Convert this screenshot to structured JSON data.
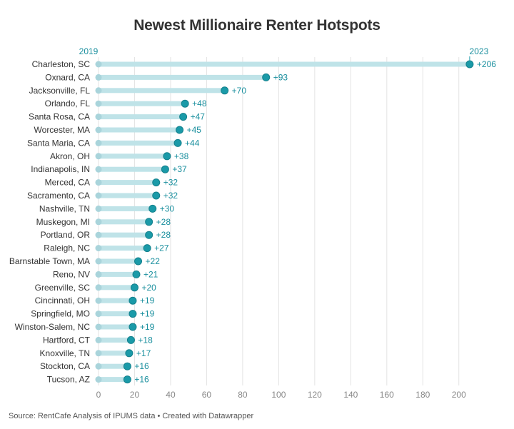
{
  "colors": {
    "accent": "#1a9aa8",
    "start_dot": "#a9d4db",
    "bar_light": "#bfe3e8",
    "grid": "#e3e3e3",
    "label": "#1a8f9e"
  },
  "chart_data": {
    "type": "range-dot",
    "title": "Newest Millionaire Renter Hotspots",
    "source": "Source: RentCafe Analysis of IPUMS data • Created with Datawrapper",
    "start_label": "2019",
    "end_label": "2023",
    "xlim": [
      0,
      210
    ],
    "xticks": [
      0,
      20,
      40,
      60,
      80,
      100,
      120,
      140,
      160,
      180,
      200
    ],
    "grid": true,
    "categories": [
      "Charleston, SC",
      "Oxnard, CA",
      "Jacksonville, FL",
      "Orlando, FL",
      "Santa Rosa, CA",
      "Worcester, MA",
      "Santa Maria, CA",
      "Akron, OH",
      "Indianapolis, IN",
      "Merced, CA",
      "Sacramento, CA",
      "Nashville, TN",
      "Muskegon, MI",
      "Portland, OR",
      "Raleigh, NC",
      "Barnstable Town, MA",
      "Reno, NV",
      "Greenville, SC",
      "Cincinnati, OH",
      "Springfield, MO",
      "Winston-Salem, NC",
      "Hartford, CT",
      "Knoxville, TN",
      "Stockton, CA",
      "Tucson, AZ"
    ],
    "start_values": [
      0,
      0,
      0,
      0,
      0,
      0,
      0,
      0,
      0,
      0,
      0,
      0,
      0,
      0,
      0,
      0,
      0,
      0,
      0,
      0,
      0,
      0,
      0,
      0,
      0
    ],
    "end_values": [
      206,
      93,
      70,
      48,
      47,
      45,
      44,
      38,
      37,
      32,
      32,
      30,
      28,
      28,
      27,
      22,
      21,
      20,
      19,
      19,
      19,
      18,
      17,
      16,
      16
    ],
    "labels": [
      "+206",
      "+93",
      "+70",
      "+48",
      "+47",
      "+45",
      "+44",
      "+38",
      "+37",
      "+32",
      "+32",
      "+30",
      "+28",
      "+28",
      "+27",
      "+22",
      "+21",
      "+20",
      "+19",
      "+19",
      "+19",
      "+18",
      "+17",
      "+16",
      "+16"
    ]
  }
}
